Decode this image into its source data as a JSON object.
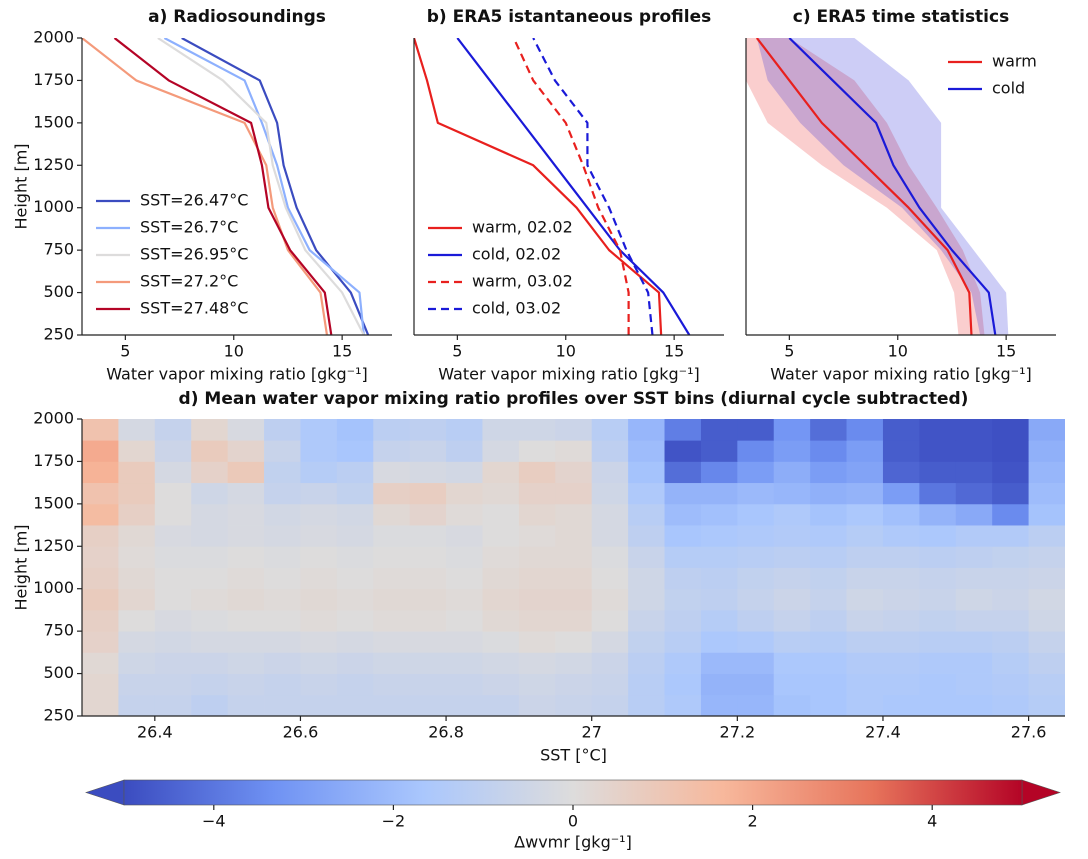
{
  "chart_data": [
    {
      "type": "line",
      "title": "a) Radiosoundings",
      "xlabel": "Water vapor mixing ratio [gkg⁻¹]",
      "ylabel": "Height [m]",
      "y": [
        250,
        500,
        750,
        1000,
        1250,
        1500,
        1750,
        2000
      ],
      "series": [
        {
          "name": "SST=26.47°C",
          "color": "#3b4cc0",
          "values": [
            16.2,
            15.4,
            13.8,
            12.9,
            12.3,
            12.0,
            11.2,
            7.6
          ]
        },
        {
          "name": "SST=26.7°C",
          "color": "#8db0fe",
          "values": [
            16.0,
            15.8,
            13.5,
            12.5,
            12.0,
            11.3,
            10.5,
            6.8
          ]
        },
        {
          "name": "SST=26.95°C",
          "color": "#dddcdc",
          "values": [
            16.0,
            15.0,
            13.3,
            12.4,
            11.8,
            11.5,
            9.5,
            6.5
          ]
        },
        {
          "name": "SST=27.2°C",
          "color": "#f49a7b",
          "values": [
            14.3,
            14.0,
            12.5,
            11.8,
            11.5,
            10.5,
            5.5,
            3.0
          ]
        },
        {
          "name": "SST=27.48°C",
          "color": "#b40426",
          "values": [
            14.5,
            14.2,
            12.6,
            11.6,
            11.3,
            10.8,
            7.0,
            4.5
          ]
        }
      ],
      "xlim": [
        3,
        17.3
      ],
      "ylim": [
        250,
        2000
      ],
      "xticks": [
        5,
        10,
        15
      ],
      "yticks": [
        250,
        500,
        750,
        1000,
        1250,
        1500,
        1750,
        2000
      ],
      "legend": "lower left"
    },
    {
      "type": "line",
      "title": "b) ERA5 istantaneous profiles",
      "xlabel": "Water vapor mixing ratio [gkg⁻¹]",
      "y": [
        250,
        500,
        750,
        1000,
        1250,
        1500,
        1750,
        2000
      ],
      "series": [
        {
          "name": "warm, 02.02",
          "color": "#e8201e",
          "dash": false,
          "values": [
            14.4,
            14.3,
            12.0,
            10.5,
            8.5,
            4.1,
            3.6,
            3.0
          ]
        },
        {
          "name": "cold, 02.02",
          "color": "#1a1ad8",
          "dash": false,
          "values": [
            15.7,
            14.5,
            12.5,
            11.0,
            9.5,
            8.0,
            6.5,
            5.0
          ]
        },
        {
          "name": "warm, 03.02",
          "color": "#e8201e",
          "dash": true,
          "values": [
            12.9,
            12.9,
            12.5,
            11.5,
            10.8,
            10.0,
            8.5,
            7.6
          ]
        },
        {
          "name": "cold, 03.02",
          "color": "#1a1ad8",
          "dash": true,
          "values": [
            14.0,
            13.8,
            12.8,
            12.0,
            11.0,
            11.0,
            9.5,
            8.5
          ]
        }
      ],
      "xlim": [
        3,
        17.3
      ],
      "ylim": [
        250,
        2000
      ],
      "xticks": [
        5,
        10,
        15
      ],
      "legend": "lower left"
    },
    {
      "type": "line",
      "title": "c) ERA5 time statistics",
      "xlabel": "Water vapor mixing ratio [gkg⁻¹]",
      "y": [
        250,
        500,
        750,
        1000,
        1250,
        1500,
        1750,
        2000
      ],
      "series": [
        {
          "name": "warm",
          "color": "#e8201e",
          "values": [
            13.4,
            13.3,
            12.3,
            10.5,
            8.5,
            6.5,
            5.0,
            3.5
          ],
          "lower": [
            12.8,
            12.6,
            11.8,
            9.5,
            6.5,
            4.0,
            3.0,
            3.0
          ],
          "upper": [
            14.0,
            13.8,
            13.0,
            11.8,
            10.5,
            9.5,
            8.0,
            5.0
          ]
        },
        {
          "name": "cold",
          "color": "#1a1ad8",
          "values": [
            14.5,
            14.2,
            12.5,
            11.0,
            9.8,
            9.0,
            7.0,
            5.0
          ],
          "lower": [
            13.8,
            13.4,
            12.0,
            10.2,
            7.5,
            5.5,
            4.0,
            3.5
          ],
          "upper": [
            15.1,
            15.0,
            13.5,
            12.0,
            12.0,
            12.0,
            10.5,
            8.0
          ]
        }
      ],
      "xlim": [
        3,
        17.3
      ],
      "ylim": [
        250,
        2000
      ],
      "xticks": [
        5,
        10,
        15
      ],
      "legend": "upper right"
    },
    {
      "type": "heatmap",
      "title": "d) Mean water vapor mixing ratio profiles over SST bins (diurnal cycle subtracted)",
      "xlabel": "SST [°C]",
      "ylabel": "Height [m]",
      "x_edges": [
        26.3,
        26.35,
        26.4,
        26.45,
        26.5,
        26.55,
        26.6,
        26.65,
        26.7,
        26.75,
        26.8,
        26.85,
        26.9,
        26.95,
        27.0,
        27.05,
        27.1,
        27.15,
        27.2,
        27.25,
        27.3,
        27.35,
        27.4,
        27.45,
        27.5,
        27.55,
        27.6,
        27.65
      ],
      "y_edges": [
        250,
        375,
        500,
        625,
        750,
        875,
        1000,
        1125,
        1250,
        1375,
        1500,
        1625,
        1750,
        1875,
        2000
      ],
      "values": [
        [
          0.3,
          -0.8,
          -0.8,
          -1,
          -0.8,
          -0.8,
          -0.8,
          -0.8,
          -0.8,
          -0.8,
          -0.8,
          -0.8,
          -0.6,
          -0.7,
          -0.8,
          -1.2,
          -1.5,
          -2.2,
          -2.2,
          -1.8,
          -1.7,
          -1.5,
          -1.6,
          -1.6,
          -1.6,
          -1.5,
          -1.3
        ],
        [
          0.3,
          -0.7,
          -0.7,
          -0.8,
          -0.7,
          -0.8,
          -0.7,
          -0.8,
          -0.7,
          -0.7,
          -0.7,
          -0.6,
          -0.5,
          -0.6,
          -0.7,
          -1.2,
          -1.6,
          -2.3,
          -2.3,
          -1.7,
          -1.7,
          -1.5,
          -1.5,
          -1.6,
          -1.5,
          -1.4,
          -1.2
        ],
        [
          0.2,
          -0.5,
          -0.6,
          -0.6,
          -0.5,
          -0.6,
          -0.5,
          -0.6,
          -0.5,
          -0.5,
          -0.5,
          -0.4,
          -0.3,
          -0.4,
          -0.6,
          -1.1,
          -1.5,
          -2.1,
          -2.1,
          -1.6,
          -1.6,
          -1.4,
          -1.4,
          -1.5,
          -1.5,
          -1.3,
          -1.0
        ],
        [
          0.5,
          -0.3,
          -0.4,
          -0.3,
          -0.3,
          -0.3,
          -0.2,
          -0.3,
          -0.2,
          -0.2,
          -0.2,
          -0.1,
          0.1,
          0.0,
          -0.3,
          -0.9,
          -1.2,
          -1.6,
          -1.5,
          -1.2,
          -1.3,
          -1.1,
          -1.1,
          -1.2,
          -1.2,
          -1.1,
          -0.8
        ],
        [
          0.6,
          0.0,
          -0.2,
          -0.1,
          0.0,
          0.0,
          0.1,
          0.0,
          0.1,
          0.1,
          0.0,
          0.2,
          0.3,
          0.3,
          0.0,
          -0.7,
          -1.0,
          -1.3,
          -1.0,
          -0.8,
          -1.0,
          -0.7,
          -0.8,
          -0.9,
          -0.8,
          -0.8,
          -0.5
        ],
        [
          0.8,
          0.3,
          0.0,
          0.1,
          0.2,
          0.1,
          0.2,
          0.1,
          0.2,
          0.2,
          0.1,
          0.3,
          0.4,
          0.4,
          0.1,
          -0.5,
          -0.9,
          -1.0,
          -0.8,
          -0.6,
          -0.8,
          -0.5,
          -0.6,
          -0.7,
          -0.5,
          -0.6,
          -0.4
        ],
        [
          0.6,
          0.2,
          0.0,
          0.0,
          0.1,
          0.0,
          0.1,
          0.0,
          0.1,
          0.1,
          0.0,
          0.2,
          0.3,
          0.3,
          0.0,
          -0.5,
          -1.0,
          -1.1,
          -0.9,
          -0.8,
          -0.9,
          -0.7,
          -0.7,
          -0.8,
          -0.7,
          -0.7,
          -0.6
        ],
        [
          0.5,
          0.1,
          -0.1,
          -0.1,
          0.0,
          -0.1,
          0.0,
          -0.1,
          0.0,
          0.0,
          -0.1,
          0.1,
          0.2,
          0.2,
          -0.1,
          -0.7,
          -1.3,
          -1.3,
          -1.2,
          -1.1,
          -1.2,
          -1.0,
          -1.0,
          -1.1,
          -1.0,
          -0.9,
          -0.8
        ],
        [
          0.6,
          0.2,
          -0.2,
          -0.3,
          -0.2,
          -0.3,
          -0.2,
          -0.3,
          -0.1,
          -0.1,
          -0.2,
          0.0,
          0.1,
          0.2,
          -0.3,
          -1.0,
          -1.7,
          -1.6,
          -1.5,
          -1.4,
          -1.5,
          -1.3,
          -1.5,
          -1.6,
          -1.4,
          -1.4,
          -1.1
        ],
        [
          1.5,
          0.6,
          0.0,
          -0.3,
          -0.2,
          -0.4,
          -0.3,
          -0.4,
          0.2,
          0.4,
          0.1,
          0.0,
          0.3,
          0.2,
          -0.3,
          -1.2,
          -2.0,
          -1.9,
          -1.7,
          -1.5,
          -1.8,
          -1.6,
          -1.9,
          -2.3,
          -2.6,
          -3.5,
          -1.8
        ],
        [
          1.2,
          0.8,
          0.0,
          -0.5,
          -0.3,
          -0.8,
          -0.7,
          -0.9,
          0.6,
          0.7,
          0.3,
          0.2,
          0.5,
          0.5,
          -0.5,
          -1.5,
          -2.3,
          -2.3,
          -2.1,
          -2.2,
          -2.4,
          -2.3,
          -3.0,
          -4.0,
          -4.3,
          -4.6,
          -2.0
        ],
        [
          1.8,
          0.8,
          -0.3,
          0.5,
          0.9,
          -0.9,
          -1.3,
          -1.1,
          -0.2,
          -0.3,
          -0.4,
          0.3,
          0.7,
          0.4,
          -0.6,
          -1.8,
          -4.2,
          -3.6,
          -3.0,
          -2.5,
          -3.0,
          -2.8,
          -4.4,
          -4.6,
          -4.6,
          -4.8,
          -2.2
        ],
        [
          2.0,
          0.3,
          -0.6,
          0.8,
          0.4,
          -0.7,
          -1.5,
          -1.7,
          -0.8,
          -0.7,
          -1.0,
          -0.3,
          0.0,
          0.1,
          -1.0,
          -2.0,
          -4.8,
          -4.6,
          -3.5,
          -3.0,
          -3.5,
          -3.0,
          -4.6,
          -4.8,
          -4.8,
          -4.9,
          -2.4
        ],
        [
          1.2,
          -0.3,
          -0.8,
          0.3,
          -0.2,
          -1.0,
          -1.5,
          -1.8,
          -1.1,
          -1.0,
          -1.2,
          -0.5,
          -0.5,
          -0.6,
          -1.2,
          -2.2,
          -3.8,
          -4.6,
          -4.6,
          -3.2,
          -4.2,
          -3.5,
          -4.6,
          -4.8,
          -4.8,
          -4.9,
          -2.6
        ]
      ],
      "xlim": [
        26.3,
        27.65
      ],
      "ylim": [
        250,
        2000
      ],
      "xticks": [
        26.4,
        26.6,
        26.8,
        27.0,
        27.2,
        27.4,
        27.6
      ],
      "yticks": [
        250,
        500,
        750,
        1000,
        1250,
        1500,
        1750,
        2000
      ],
      "clim": [
        -5,
        5
      ],
      "colormap": [
        "#3b4cc0",
        "#6f92f3",
        "#aac7fd",
        "#dddcdc",
        "#f7b89c",
        "#e7745b",
        "#b40426"
      ],
      "colorbar": {
        "label": "Δwvmr [gkg⁻¹]",
        "ticks": [
          {
            "value": -4,
            "label": "−4"
          },
          {
            "value": -2,
            "label": "−2"
          },
          0,
          2,
          4
        ]
      }
    }
  ]
}
